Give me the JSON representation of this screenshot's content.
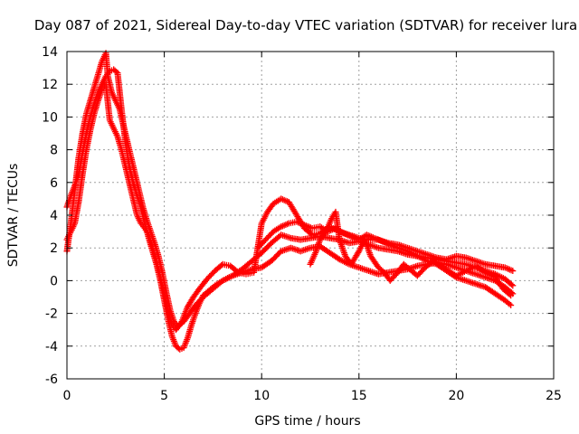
{
  "chart_data": {
    "type": "scatter",
    "title": "Day 087 of 2021, Sidereal Day-to-day VTEC variation (SDTVAR) for receiver lura",
    "xlabel": "GPS time / hours",
    "ylabel": "SDTVAR / TECUs",
    "xlim": [
      0,
      25
    ],
    "ylim": [
      -6,
      14
    ],
    "xticks": [
      "0",
      "5",
      "10",
      "15",
      "20",
      "25"
    ],
    "yticks": [
      "-6",
      "-4",
      "-2",
      "0",
      "2",
      "4",
      "6",
      "8",
      "10",
      "12",
      "14"
    ],
    "grid": true,
    "marker": "+",
    "series": [
      {
        "name": "trace-a",
        "color": "#ff0000",
        "points": [
          [
            0.0,
            1.8
          ],
          [
            0.2,
            3.5
          ],
          [
            0.4,
            5.5
          ],
          [
            0.6,
            7.5
          ],
          [
            0.8,
            9.0
          ],
          [
            1.0,
            10.2
          ],
          [
            1.2,
            11.0
          ],
          [
            1.4,
            11.8
          ],
          [
            1.6,
            12.6
          ],
          [
            1.8,
            13.4
          ],
          [
            2.0,
            13.9
          ],
          [
            2.1,
            12.5
          ],
          [
            2.2,
            12.0
          ],
          [
            2.3,
            11.5
          ],
          [
            2.5,
            11.0
          ],
          [
            2.7,
            10.5
          ],
          [
            2.9,
            9.5
          ],
          [
            3.1,
            8.5
          ],
          [
            3.3,
            7.5
          ],
          [
            3.5,
            6.5
          ],
          [
            3.7,
            5.5
          ],
          [
            3.9,
            4.5
          ],
          [
            4.1,
            3.7
          ],
          [
            4.3,
            3.0
          ],
          [
            4.5,
            2.3
          ],
          [
            4.7,
            1.5
          ],
          [
            4.9,
            0.5
          ],
          [
            5.1,
            -0.7
          ],
          [
            5.3,
            -1.8
          ],
          [
            5.5,
            -2.5
          ],
          [
            5.7,
            -2.8
          ],
          [
            6.0,
            -2.5
          ],
          [
            6.3,
            -2.0
          ],
          [
            6.6,
            -1.5
          ],
          [
            7.0,
            -1.0
          ],
          [
            7.5,
            -0.5
          ],
          [
            8.0,
            0.0
          ],
          [
            8.5,
            0.3
          ],
          [
            9.0,
            0.7
          ],
          [
            9.5,
            1.2
          ],
          [
            10.0,
            1.7
          ],
          [
            10.5,
            2.3
          ],
          [
            11.0,
            2.8
          ],
          [
            11.5,
            2.6
          ],
          [
            12.0,
            2.5
          ],
          [
            12.5,
            2.6
          ],
          [
            13.0,
            2.7
          ],
          [
            13.5,
            2.6
          ],
          [
            14.0,
            2.5
          ],
          [
            14.5,
            2.3
          ],
          [
            15.0,
            2.4
          ],
          [
            15.5,
            2.2
          ],
          [
            16.0,
            2.0
          ],
          [
            16.5,
            1.9
          ],
          [
            17.0,
            1.8
          ],
          [
            17.5,
            1.6
          ],
          [
            18.0,
            1.5
          ],
          [
            18.5,
            1.4
          ],
          [
            19.0,
            1.3
          ],
          [
            19.5,
            1.2
          ],
          [
            20.0,
            1.1
          ],
          [
            20.5,
            1.0
          ],
          [
            21.0,
            0.8
          ],
          [
            21.5,
            0.6
          ],
          [
            22.0,
            0.4
          ],
          [
            22.5,
            0.1
          ],
          [
            22.9,
            -0.3
          ]
        ]
      },
      {
        "name": "trace-b",
        "color": "#ff0000",
        "points": [
          [
            0.0,
            4.5
          ],
          [
            0.2,
            5.2
          ],
          [
            0.4,
            5.8
          ],
          [
            0.6,
            6.5
          ],
          [
            0.8,
            7.8
          ],
          [
            1.0,
            9.0
          ],
          [
            1.2,
            10.0
          ],
          [
            1.4,
            10.8
          ],
          [
            1.6,
            11.5
          ],
          [
            1.8,
            12.0
          ],
          [
            2.0,
            12.5
          ],
          [
            2.2,
            12.8
          ],
          [
            2.4,
            12.9
          ],
          [
            2.6,
            12.7
          ],
          [
            2.8,
            10.5
          ],
          [
            3.0,
            8.5
          ],
          [
            3.2,
            7.0
          ],
          [
            3.4,
            6.0
          ],
          [
            3.6,
            5.2
          ],
          [
            3.8,
            4.5
          ],
          [
            4.0,
            3.5
          ],
          [
            4.2,
            2.6
          ],
          [
            4.4,
            1.8
          ],
          [
            4.6,
            1.0
          ],
          [
            4.8,
            0.0
          ],
          [
            5.0,
            -1.2
          ],
          [
            5.2,
            -2.4
          ],
          [
            5.4,
            -3.4
          ],
          [
            5.6,
            -4.0
          ],
          [
            5.8,
            -4.2
          ],
          [
            6.0,
            -4.1
          ],
          [
            6.2,
            -3.5
          ],
          [
            6.4,
            -2.7
          ],
          [
            6.6,
            -2.0
          ],
          [
            6.8,
            -1.4
          ],
          [
            7.0,
            -0.9
          ],
          [
            7.3,
            -0.6
          ],
          [
            7.6,
            -0.3
          ],
          [
            8.0,
            0.0
          ],
          [
            8.5,
            0.3
          ],
          [
            9.0,
            0.5
          ],
          [
            9.5,
            0.7
          ],
          [
            10.0,
            0.8
          ],
          [
            10.5,
            1.2
          ],
          [
            11.0,
            1.8
          ],
          [
            11.5,
            2.0
          ],
          [
            12.0,
            1.8
          ],
          [
            12.5,
            2.0
          ],
          [
            13.0,
            2.1
          ],
          [
            13.5,
            1.7
          ],
          [
            14.0,
            1.3
          ],
          [
            14.5,
            1.0
          ],
          [
            15.0,
            0.8
          ],
          [
            15.5,
            0.6
          ],
          [
            16.0,
            0.4
          ],
          [
            16.5,
            0.5
          ],
          [
            17.0,
            0.6
          ],
          [
            17.5,
            0.7
          ],
          [
            18.0,
            0.9
          ],
          [
            18.5,
            1.0
          ],
          [
            19.0,
            1.1
          ],
          [
            19.5,
            1.0
          ],
          [
            20.0,
            0.8
          ],
          [
            20.5,
            0.6
          ],
          [
            21.0,
            0.4
          ],
          [
            21.5,
            0.2
          ],
          [
            22.0,
            0.0
          ],
          [
            22.5,
            -0.4
          ],
          [
            22.9,
            -0.8
          ]
        ]
      },
      {
        "name": "trace-c",
        "color": "#ff0000",
        "points": [
          [
            0.0,
            2.5
          ],
          [
            0.2,
            3.0
          ],
          [
            0.4,
            3.5
          ],
          [
            0.6,
            4.8
          ],
          [
            0.8,
            6.5
          ],
          [
            1.0,
            8.0
          ],
          [
            1.2,
            9.2
          ],
          [
            1.4,
            10.2
          ],
          [
            1.6,
            11.0
          ],
          [
            1.8,
            11.7
          ],
          [
            2.0,
            12.0
          ],
          [
            2.2,
            9.8
          ],
          [
            2.4,
            9.3
          ],
          [
            2.6,
            8.8
          ],
          [
            2.8,
            8.0
          ],
          [
            3.0,
            7.0
          ],
          [
            3.2,
            6.0
          ],
          [
            3.4,
            5.0
          ],
          [
            3.6,
            4.0
          ],
          [
            3.8,
            3.5
          ],
          [
            4.0,
            3.2
          ],
          [
            4.2,
            2.8
          ],
          [
            4.4,
            2.0
          ],
          [
            4.6,
            1.2
          ],
          [
            4.8,
            0.2
          ],
          [
            5.0,
            -0.8
          ],
          [
            5.2,
            -1.9
          ],
          [
            5.4,
            -2.7
          ],
          [
            5.6,
            -3.0
          ],
          [
            5.9,
            -2.5
          ],
          [
            6.2,
            -1.6
          ],
          [
            6.5,
            -1.0
          ],
          [
            6.8,
            -0.5
          ],
          [
            7.2,
            0.1
          ],
          [
            7.6,
            0.6
          ],
          [
            8.0,
            1.0
          ],
          [
            8.4,
            0.9
          ],
          [
            8.8,
            0.5
          ],
          [
            9.2,
            0.4
          ],
          [
            9.6,
            0.5
          ],
          [
            10.0,
            3.5
          ],
          [
            10.3,
            4.2
          ],
          [
            10.6,
            4.7
          ],
          [
            11.0,
            5.0
          ],
          [
            11.4,
            4.8
          ],
          [
            11.8,
            4.0
          ],
          [
            12.2,
            3.2
          ],
          [
            12.6,
            2.8
          ],
          [
            13.0,
            2.9
          ],
          [
            13.5,
            3.3
          ],
          [
            14.0,
            3.0
          ],
          [
            14.5,
            2.8
          ],
          [
            15.0,
            2.6
          ],
          [
            15.5,
            2.5
          ],
          [
            16.0,
            2.5
          ],
          [
            16.5,
            2.3
          ],
          [
            17.0,
            2.2
          ],
          [
            17.5,
            2.0
          ],
          [
            18.0,
            1.8
          ],
          [
            18.5,
            1.6
          ],
          [
            19.0,
            1.4
          ],
          [
            19.5,
            1.3
          ],
          [
            20.0,
            1.5
          ],
          [
            20.5,
            1.4
          ],
          [
            21.0,
            1.2
          ],
          [
            21.5,
            1.0
          ],
          [
            22.0,
            0.9
          ],
          [
            22.5,
            0.8
          ],
          [
            22.9,
            0.6
          ]
        ]
      },
      {
        "name": "trace-d",
        "color": "#ff0000",
        "points": [
          [
            9.8,
            2.0
          ],
          [
            10.2,
            2.5
          ],
          [
            10.6,
            3.0
          ],
          [
            11.0,
            3.3
          ],
          [
            11.4,
            3.5
          ],
          [
            11.8,
            3.6
          ],
          [
            12.2,
            3.4
          ],
          [
            12.6,
            3.2
          ],
          [
            13.0,
            3.3
          ],
          [
            13.4,
            3.0
          ],
          [
            13.8,
            3.2
          ],
          [
            14.2,
            2.9
          ],
          [
            14.6,
            2.7
          ],
          [
            15.0,
            2.5
          ],
          [
            15.4,
            2.8
          ],
          [
            15.8,
            2.6
          ],
          [
            16.2,
            2.4
          ],
          [
            16.6,
            2.2
          ],
          [
            17.0,
            2.0
          ],
          [
            17.5,
            1.8
          ],
          [
            18.0,
            1.5
          ],
          [
            18.5,
            1.2
          ],
          [
            19.0,
            1.0
          ],
          [
            19.5,
            0.6
          ],
          [
            20.0,
            0.2
          ],
          [
            20.5,
            0.0
          ],
          [
            21.0,
            -0.2
          ],
          [
            21.5,
            -0.4
          ],
          [
            22.0,
            -0.8
          ],
          [
            22.5,
            -1.2
          ],
          [
            22.8,
            -1.5
          ]
        ]
      },
      {
        "name": "trace-e",
        "color": "#ff0000",
        "points": [
          [
            12.5,
            1.0
          ],
          [
            12.8,
            1.8
          ],
          [
            13.0,
            2.5
          ],
          [
            13.3,
            3.0
          ],
          [
            13.6,
            3.8
          ],
          [
            13.8,
            4.2
          ],
          [
            14.0,
            2.5
          ],
          [
            14.3,
            1.5
          ],
          [
            14.6,
            1.0
          ],
          [
            15.0,
            1.8
          ],
          [
            15.3,
            2.5
          ],
          [
            15.6,
            1.5
          ],
          [
            16.0,
            0.8
          ],
          [
            16.3,
            0.5
          ],
          [
            16.6,
            0.0
          ],
          [
            17.0,
            0.5
          ],
          [
            17.3,
            1.0
          ],
          [
            17.6,
            0.7
          ],
          [
            18.0,
            0.3
          ],
          [
            18.4,
            0.8
          ],
          [
            18.8,
            1.2
          ],
          [
            19.2,
            0.9
          ],
          [
            19.6,
            0.6
          ],
          [
            20.0,
            0.3
          ],
          [
            20.5,
            0.6
          ],
          [
            21.0,
            0.9
          ],
          [
            21.5,
            0.5
          ],
          [
            22.0,
            0.2
          ],
          [
            22.4,
            -0.5
          ],
          [
            22.8,
            -0.9
          ]
        ]
      }
    ]
  }
}
